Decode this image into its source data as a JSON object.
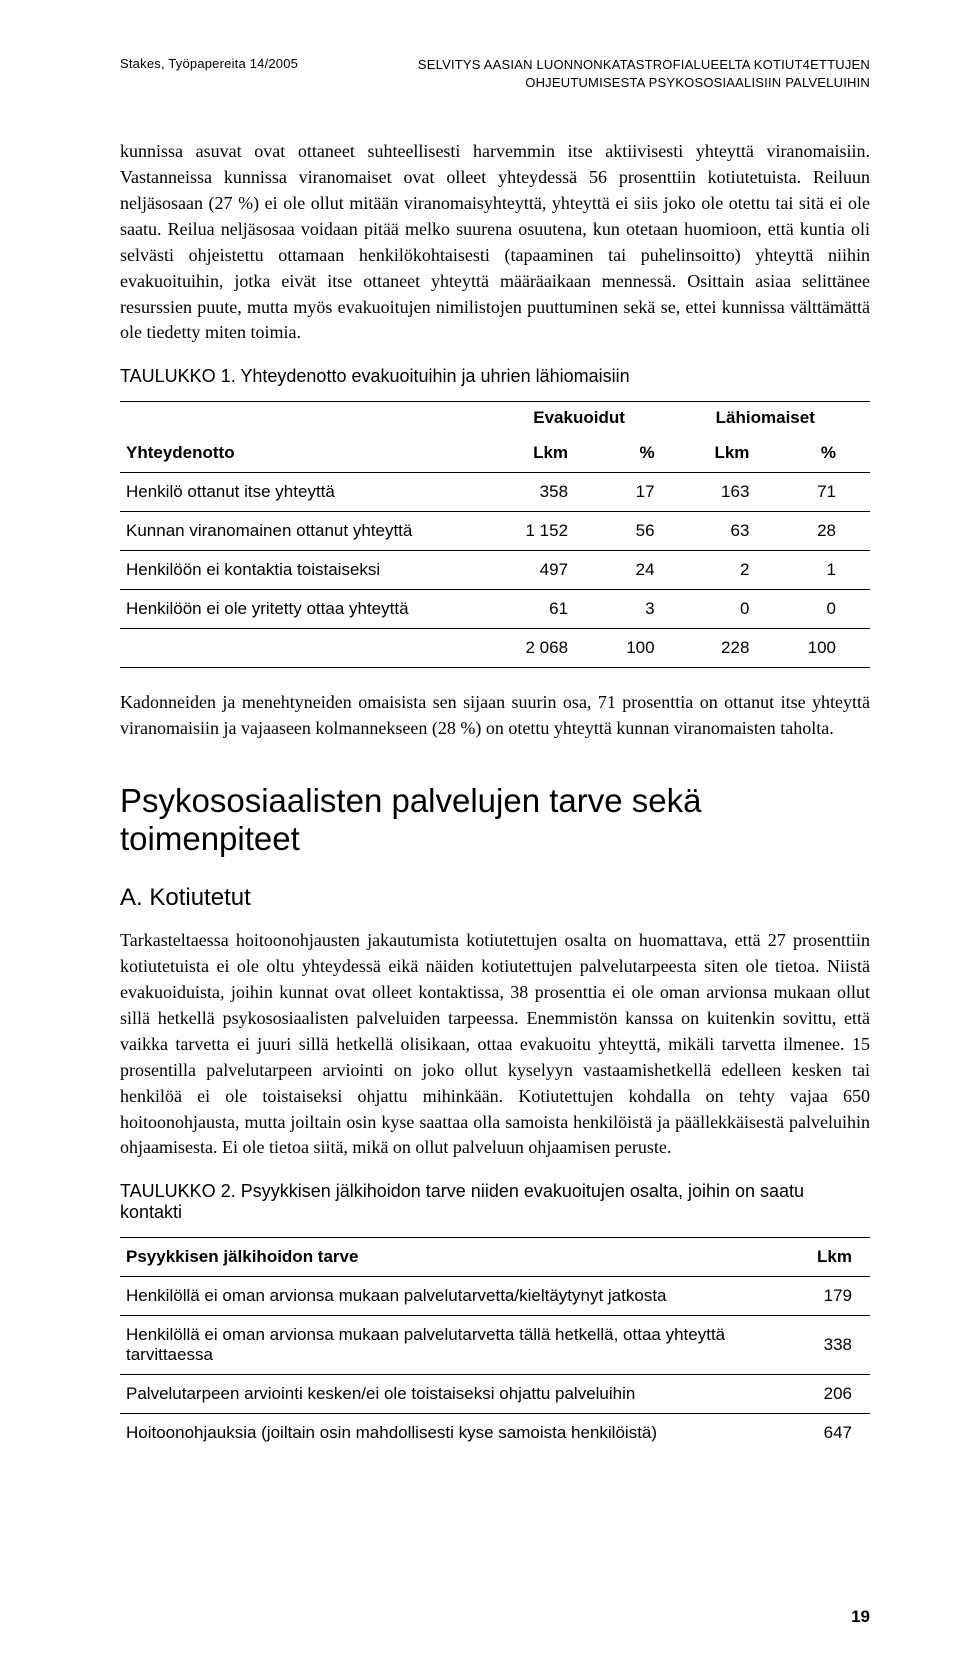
{
  "header": {
    "left": "Stakes, Työpapereita 14/2005",
    "right_l1": "SELVITYS AASIAN LUONNONKATASTROFIALUEELTA KOTIUT4ETTUJEN",
    "right_l2": "OHJEUTUMISESTA PSYKOSOSIAALISIIN PALVELUIHIN"
  },
  "para1": "kunnissa asuvat ovat ottaneet suhteellisesti harvemmin itse aktiivisesti yhteyttä viranomaisiin. Vastanneissa kunnissa viranomaiset ovat olleet yhteydessä 56 prosenttiin kotiutetuista. Reiluun neljäsosaan (27 %) ei ole ollut mitään viranomaisyhteyttä, yhteyttä ei siis joko ole otettu tai sitä ei ole saatu. Reilua neljäsosaa voidaan pitää melko suurena osuutena, kun otetaan huomioon, että kuntia oli selvästi ohjeistettu ottamaan henkilökohtaisesti (tapaaminen tai puhelinsoitto) yhteyttä niihin evakuoituihin, jotka eivät itse ottaneet yhteyttä määräaikaan mennessä. Osittain asiaa selittänee resurssien puute, mutta myös evakuoitujen nimilistojen puuttuminen sekä se, ettei kunnissa välttämättä ole tiedetty miten toimia.",
  "t1": {
    "caption": "TAULUKKO 1. Yhteydenotto evakuoituihin ja uhrien lähiomaisiin",
    "group1": "Evakuoidut",
    "group2": "Lähiomaiset",
    "head_label": "Yhteydenotto",
    "head_c1": "Lkm",
    "head_c2": "%",
    "head_c3": "Lkm",
    "head_c4": "%",
    "rows": [
      {
        "label": "Henkilö ottanut itse yhteyttä",
        "c1": "358",
        "c2": "17",
        "c3": "163",
        "c4": "71"
      },
      {
        "label": "Kunnan viranomainen ottanut yhteyttä",
        "c1": "1 152",
        "c2": "56",
        "c3": "63",
        "c4": "28"
      },
      {
        "label": "Henkilöön ei kontaktia toistaiseksi",
        "c1": "497",
        "c2": "24",
        "c3": "2",
        "c4": "1"
      },
      {
        "label": "Henkilöön ei ole yritetty ottaa yhteyttä",
        "c1": "61",
        "c2": "3",
        "c3": "0",
        "c4": "0"
      }
    ],
    "total": {
      "c1": "2 068",
      "c2": "100",
      "c3": "228",
      "c4": "100"
    }
  },
  "para2": "Kadonneiden ja menehtyneiden omaisista sen sijaan suurin osa, 71 prosenttia on ottanut itse yhteyttä viranomaisiin ja vajaaseen kolmannekseen (28 %) on otettu yhteyttä kunnan viranomaisten taholta.",
  "section": "Psykososiaalisten palvelujen tarve sekä toimenpiteet",
  "sub": "A. Kotiutetut",
  "para3": "Tarkasteltaessa hoitoonohjausten jakautumista kotiutettujen osalta on huomattava, että 27 prosenttiin kotiutetuista ei ole oltu yhteydessä eikä näiden kotiutettujen palvelutarpeesta siten ole tietoa. Niistä evakuoiduista, joihin kunnat ovat olleet kontaktissa, 38 prosenttia ei ole oman arvionsa mukaan ollut sillä hetkellä psykososiaalisten palveluiden tarpeessa. Enemmistön kanssa on kuitenkin sovittu, että vaikka tarvetta ei juuri sillä hetkellä olisikaan, ottaa evakuoitu yhteyttä, mikäli tarvetta ilmenee. 15 prosentilla palvelutarpeen arviointi on joko ollut kyselyyn vastaamishetkellä edelleen kesken tai henkilöä ei ole toistaiseksi ohjattu mihinkään. Kotiutettujen kohdalla on tehty vajaa 650 hoitoonohjausta, mutta joiltain osin kyse saattaa olla samoista henkilöistä ja päällekkäisestä palveluihin ohjaamisesta. Ei ole tietoa siitä, mikä on ollut palveluun ohjaamisen peruste.",
  "t2": {
    "caption": "TAULUKKO 2. Psyykkisen jälkihoidon tarve niiden evakuoitujen osalta, joihin on saatu kontakti",
    "head_label": "Psyykkisen jälkihoidon tarve",
    "head_val": "Lkm",
    "rows": [
      {
        "label": "Henkilöllä ei oman arvionsa mukaan palvelutarvetta/kieltäytynyt jatkosta",
        "val": "179"
      },
      {
        "label": "Henkilöllä ei oman arvionsa mukaan palvelutarvetta tällä hetkellä, ottaa yhteyttä tarvittaessa",
        "val": "338"
      },
      {
        "label": "Palvelutarpeen arviointi kesken/ei ole toistaiseksi ohjattu palveluihin",
        "val": "206"
      },
      {
        "label": "Hoitoonohjauksia (joiltain osin mahdollisesti kyse samoista henkilöistä)",
        "val": "647"
      }
    ]
  },
  "pagenum": "19"
}
